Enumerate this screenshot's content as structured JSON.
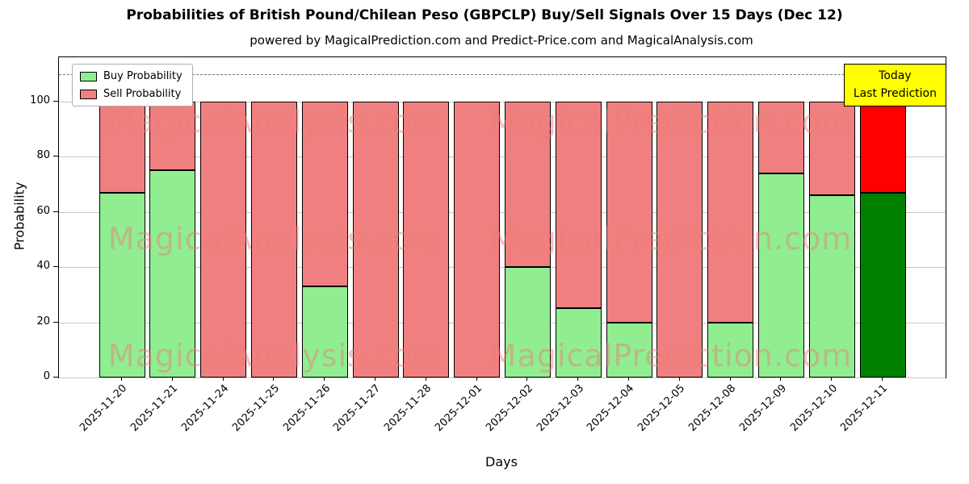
{
  "title": "Probabilities of British Pound/Chilean Peso (GBPCLP) Buy/Sell Signals Over 15 Days (Dec 12)",
  "subtitle": "powered by MagicalPrediction.com and Predict-Price.com and MagicalAnalysis.com",
  "legend": {
    "buy_label": "Buy Probability",
    "sell_label": "Sell Probability",
    "position": "upper left"
  },
  "today_box": {
    "line1": "Today",
    "line2": "Last Prediction",
    "bg_color": "#ffff00"
  },
  "watermark": {
    "texts": [
      "MagicalAnalysis.com",
      "MagicalPrediction.com"
    ],
    "color": "#f07878",
    "opacity": 0.45
  },
  "chart_data": {
    "type": "bar",
    "stacked": true,
    "title": "Probabilities of British Pound/Chilean Peso (GBPCLP) Buy/Sell Signals Over 15 Days (Dec 12)",
    "xlabel": "Days",
    "ylabel": "Probability",
    "categories": [
      "2025-11-20",
      "2025-11-21",
      "2025-11-24",
      "2025-11-25",
      "2025-11-26",
      "2025-11-27",
      "2025-11-28",
      "2025-12-01",
      "2025-12-02",
      "2025-12-03",
      "2025-12-04",
      "2025-12-05",
      "2025-12-08",
      "2025-12-09",
      "2025-12-10",
      "2025-12-11"
    ],
    "series": [
      {
        "name": "Buy Probability",
        "color": "#90ee90",
        "values": [
          67,
          75,
          0,
          0,
          33,
          0,
          0,
          0,
          40,
          25,
          20,
          0,
          20,
          74,
          66,
          67
        ]
      },
      {
        "name": "Sell Probability",
        "color": "#f08080",
        "values": [
          33,
          25,
          100,
          100,
          67,
          100,
          100,
          100,
          60,
          75,
          80,
          100,
          80,
          26,
          34,
          33
        ]
      }
    ],
    "today_bar": {
      "index": 15,
      "buy_color": "#008000",
      "sell_color": "#ff0000"
    },
    "yticks": [
      0,
      20,
      40,
      60,
      80,
      100
    ],
    "ylim": [
      0,
      116
    ],
    "dashed_line_y": 110,
    "grid": "horizontal"
  }
}
